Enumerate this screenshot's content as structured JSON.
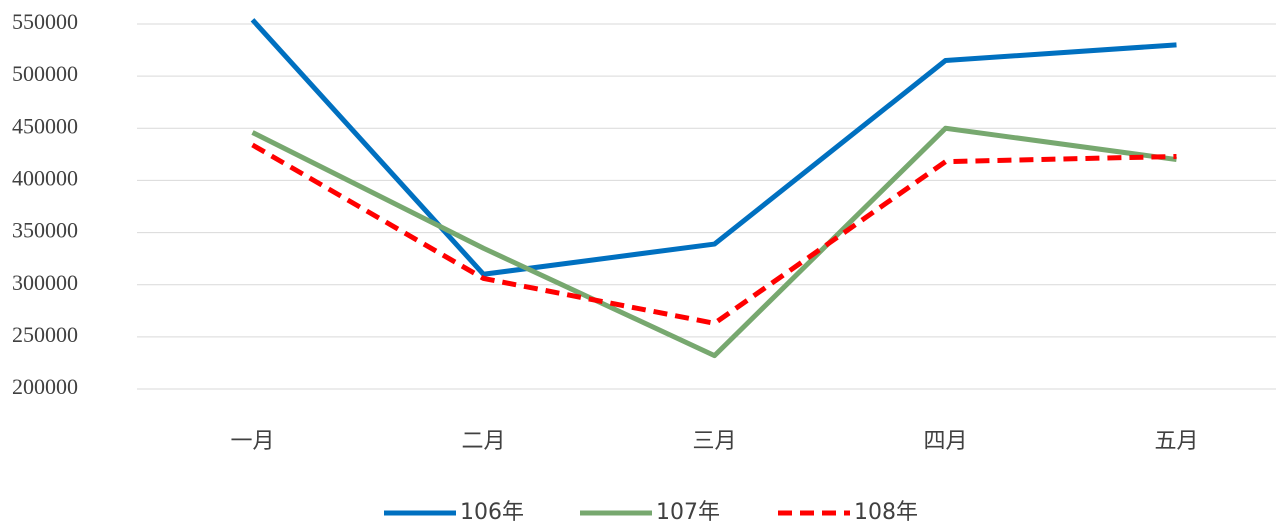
{
  "chart_data": {
    "type": "line",
    "categories": [
      "一月",
      "二月",
      "三月",
      "四月",
      "五月"
    ],
    "series": [
      {
        "name": "106年",
        "color": "#0070c0",
        "line_style": "solid",
        "values": [
          554000,
          310000,
          339000,
          515000,
          530000
        ]
      },
      {
        "name": "107年",
        "color": "#77a86f",
        "line_style": "solid",
        "values": [
          446000,
          335000,
          232000,
          450000,
          420000
        ]
      },
      {
        "name": "108年",
        "color": "#ff0000",
        "line_style": "dashed",
        "values": [
          434000,
          306000,
          263000,
          418000,
          423000
        ]
      }
    ],
    "ylim": [
      200000,
      550000
    ],
    "yticks": [
      200000,
      250000,
      300000,
      350000,
      400000,
      450000,
      500000,
      550000
    ],
    "grid": true,
    "legend": "bottom"
  }
}
